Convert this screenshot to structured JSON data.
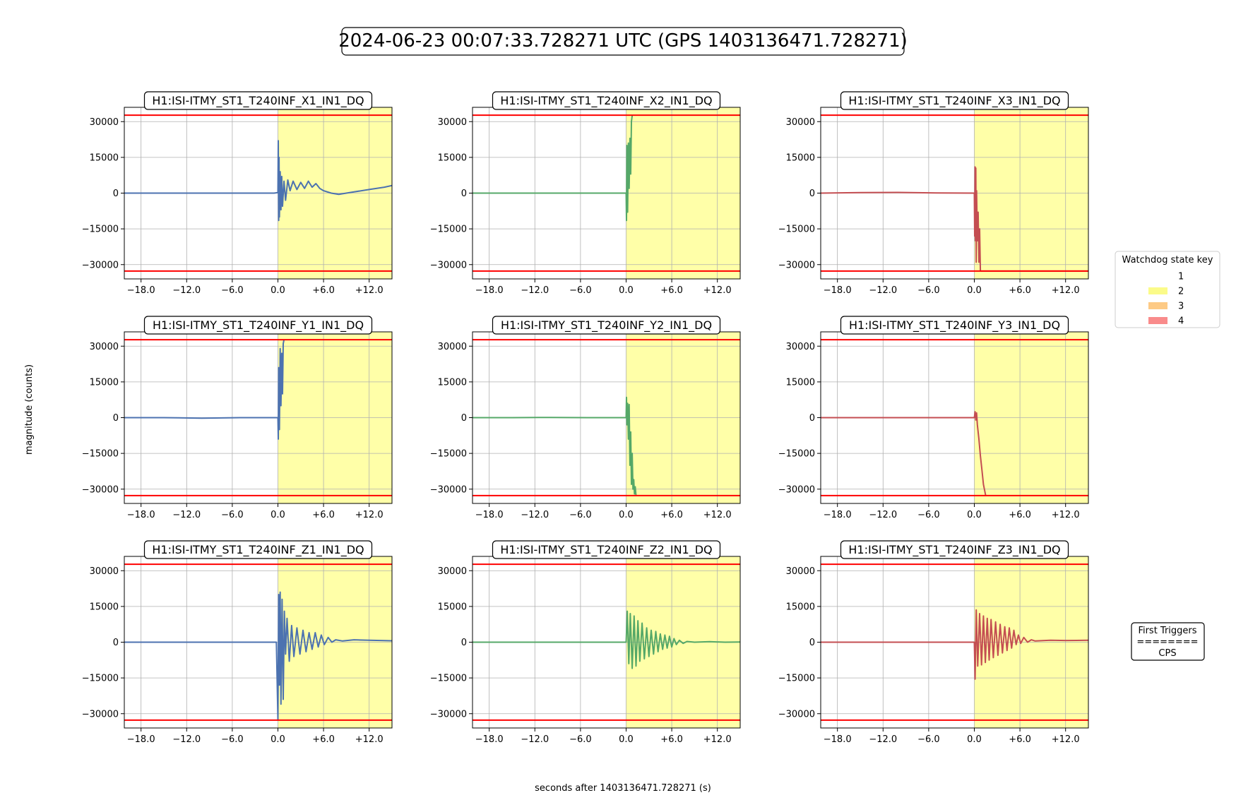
{
  "figure": {
    "title": "2024-06-23 00:07:33.728271 UTC (GPS 1403136471.728271)",
    "xlabel": "seconds after 1403136471.728271 (s)",
    "ylabel": "magnitude (counts)"
  },
  "legend": {
    "title": "Watchdog state key",
    "items": [
      {
        "label": "1",
        "color": "#ffffff"
      },
      {
        "label": "2",
        "color": "#fbfb89"
      },
      {
        "label": "3",
        "color": "#fdca85"
      },
      {
        "label": "4",
        "color": "#f98b8b"
      }
    ]
  },
  "first_triggers": {
    "title": "First Triggers",
    "rule": "========",
    "value": "CPS"
  },
  "colors": {
    "blue": "#4c72b0",
    "green": "#55a868",
    "red": "#c44e52",
    "threshold": "#ff0000",
    "state2_shade": "#ffffa8",
    "grid": "#b0b0b0"
  },
  "chart_data": [
    {
      "type": "line",
      "title": "H1:ISI-ITMY_ST1_T240INF_X1_IN1_DQ",
      "color": "blue",
      "xlim": [
        -20.2,
        15
      ],
      "ylim": [
        -36000,
        36000
      ],
      "xticks": [
        -18,
        -12,
        -6,
        0,
        6,
        12
      ],
      "xtick_labels": [
        "−18.0",
        "−12.0",
        "−6.0",
        "0.0",
        "+6.0",
        "+12.0"
      ],
      "yticks": [
        30000,
        15000,
        0,
        -15000,
        -30000
      ],
      "ytick_labels": [
        "30000",
        "15000",
        "0",
        "−15000",
        "−30000"
      ],
      "thresholds": [
        32700,
        -32700
      ],
      "shade": {
        "from": 0,
        "to": 15,
        "state": 2
      },
      "x": [
        -20.2,
        -15,
        -10,
        -5,
        -0.5,
        0,
        0.05,
        0.1,
        0.15,
        0.2,
        0.3,
        0.4,
        0.5,
        0.6,
        0.8,
        1.0,
        1.3,
        1.6,
        2.0,
        2.5,
        3.0,
        3.5,
        4.0,
        4.5,
        5.0,
        5.5,
        6.0,
        7.0,
        8.0,
        9.0,
        10.0,
        11.0,
        12.0,
        13.0,
        14.0,
        15.0
      ],
      "y": [
        0,
        0,
        0,
        0,
        0,
        200,
        22000,
        -11500,
        15000,
        -10000,
        9000,
        -7000,
        7000,
        -5500,
        5000,
        -3000,
        5500,
        1000,
        5000,
        1500,
        4500,
        2000,
        5000,
        2500,
        4000,
        2000,
        1000,
        0,
        -500,
        0,
        500,
        1000,
        1500,
        2000,
        2500,
        3200
      ]
    },
    {
      "type": "line",
      "title": "H1:ISI-ITMY_ST1_T240INF_X2_IN1_DQ",
      "color": "green",
      "xlim": [
        -20.2,
        15
      ],
      "ylim": [
        -36000,
        36000
      ],
      "xticks": [
        -18,
        -12,
        -6,
        0,
        6,
        12
      ],
      "xtick_labels": [
        "−18.0",
        "−12.0",
        "−6.0",
        "0.0",
        "+6.0",
        "+12.0"
      ],
      "yticks": [
        30000,
        15000,
        0,
        -15000,
        -30000
      ],
      "ytick_labels": [
        "30000",
        "15000",
        "0",
        "−15000",
        "−30000"
      ],
      "thresholds": [
        32700,
        -32700
      ],
      "shade": {
        "from": 0,
        "to": 15,
        "state": 2
      },
      "x": [
        -20.2,
        -15,
        -10,
        -5,
        0,
        0.05,
        0.1,
        0.2,
        0.3,
        0.4,
        0.5,
        0.6,
        0.7,
        0.8
      ],
      "y": [
        0,
        0,
        0,
        0,
        0,
        -11500,
        20000,
        -8000,
        21000,
        2000,
        23000,
        8000,
        30000,
        32500
      ]
    },
    {
      "type": "line",
      "title": "H1:ISI-ITMY_ST1_T240INF_X3_IN1_DQ",
      "color": "red",
      "xlim": [
        -20.2,
        15
      ],
      "ylim": [
        -36000,
        36000
      ],
      "xticks": [
        -18,
        -12,
        -6,
        0,
        6,
        12
      ],
      "xtick_labels": [
        "−18.0",
        "−12.0",
        "−6.0",
        "0.0",
        "+6.0",
        "+12.0"
      ],
      "yticks": [
        30000,
        15000,
        0,
        -15000,
        -30000
      ],
      "ytick_labels": [
        "30000",
        "15000",
        "0",
        "−15000",
        "−30000"
      ],
      "thresholds": [
        32700,
        -32700
      ],
      "shade": {
        "from": 0,
        "to": 15,
        "state": 2
      },
      "x": [
        -20.2,
        -15,
        -10,
        -5,
        0,
        0.05,
        0.1,
        0.15,
        0.2,
        0.25,
        0.3,
        0.4,
        0.5,
        0.6,
        0.7,
        0.8,
        1.0,
        1.5,
        15
      ],
      "y": [
        0,
        200,
        300,
        100,
        0,
        -18000,
        11000,
        -20000,
        10500,
        -29000,
        1000,
        -20000,
        -8000,
        -29000,
        -15000,
        -32700,
        -32700,
        -32700,
        -32700
      ]
    },
    {
      "type": "line",
      "title": "H1:ISI-ITMY_ST1_T240INF_Y1_IN1_DQ",
      "color": "blue",
      "xlim": [
        -20.2,
        15
      ],
      "ylim": [
        -36000,
        36000
      ],
      "xticks": [
        -18,
        -12,
        -6,
        0,
        6,
        12
      ],
      "xtick_labels": [
        "−18.0",
        "−12.0",
        "−6.0",
        "0.0",
        "+6.0",
        "+12.0"
      ],
      "yticks": [
        30000,
        15000,
        0,
        -15000,
        -30000
      ],
      "ytick_labels": [
        "30000",
        "15000",
        "0",
        "−15000",
        "−30000"
      ],
      "thresholds": [
        32700,
        -32700
      ],
      "shade": {
        "from": 0,
        "to": 15,
        "state": 2
      },
      "x": [
        -20.2,
        -15,
        -10,
        -5,
        0,
        0.05,
        0.1,
        0.2,
        0.3,
        0.4,
        0.5,
        0.6,
        0.7,
        0.8
      ],
      "y": [
        0,
        0,
        -200,
        0,
        0,
        -9000,
        21000,
        -5000,
        29000,
        5000,
        27000,
        10000,
        31000,
        32700
      ]
    },
    {
      "type": "line",
      "title": "H1:ISI-ITMY_ST1_T240INF_Y2_IN1_DQ",
      "color": "green",
      "xlim": [
        -20.2,
        15
      ],
      "ylim": [
        -36000,
        36000
      ],
      "xticks": [
        -18,
        -12,
        -6,
        0,
        6,
        12
      ],
      "xtick_labels": [
        "−18.0",
        "−12.0",
        "−6.0",
        "0.0",
        "+6.0",
        "+12.0"
      ],
      "yticks": [
        30000,
        15000,
        0,
        -15000,
        -30000
      ],
      "ytick_labels": [
        "30000",
        "15000",
        "0",
        "−15000",
        "−30000"
      ],
      "thresholds": [
        32700,
        -32700
      ],
      "shade": {
        "from": 0,
        "to": 15,
        "state": 2
      },
      "x": [
        -20.2,
        -15,
        -10,
        -5,
        0,
        0.05,
        0.1,
        0.2,
        0.3,
        0.4,
        0.5,
        0.6,
        0.7,
        0.8,
        0.9,
        1.0,
        1.1,
        1.2,
        1.3
      ],
      "y": [
        0,
        0,
        100,
        0,
        0,
        8500,
        -3000,
        6000,
        -9000,
        5500,
        -20000,
        -6000,
        -28000,
        -15000,
        -30000,
        -26000,
        -32000,
        -29000,
        -32700
      ]
    },
    {
      "type": "line",
      "title": "H1:ISI-ITMY_ST1_T240INF_Y3_IN1_DQ",
      "color": "red",
      "xlim": [
        -20.2,
        15
      ],
      "ylim": [
        -36000,
        36000
      ],
      "xticks": [
        -18,
        -12,
        -6,
        0,
        6,
        12
      ],
      "xtick_labels": [
        "−18.0",
        "−12.0",
        "−6.0",
        "0.0",
        "+6.0",
        "+12.0"
      ],
      "yticks": [
        30000,
        15000,
        0,
        -15000,
        -30000
      ],
      "ytick_labels": [
        "30000",
        "15000",
        "0",
        "−15000",
        "−30000"
      ],
      "thresholds": [
        32700,
        -32700
      ],
      "shade": {
        "from": 0,
        "to": 15,
        "state": 2
      },
      "x": [
        -20.2,
        -15,
        -10,
        -5,
        0,
        0.1,
        0.2,
        0.3,
        0.4,
        0.6,
        0.8,
        1.0,
        1.2,
        1.5
      ],
      "y": [
        0,
        0,
        0,
        0,
        0,
        2500,
        -1000,
        2000,
        -3000,
        -9000,
        -16000,
        -22000,
        -28000,
        -32700
      ]
    },
    {
      "type": "line",
      "title": "H1:ISI-ITMY_ST1_T240INF_Z1_IN1_DQ",
      "color": "blue",
      "xlim": [
        -20.2,
        15
      ],
      "ylim": [
        -36000,
        36000
      ],
      "xticks": [
        -18,
        -12,
        -6,
        0,
        6,
        12
      ],
      "xtick_labels": [
        "−18.0",
        "−12.0",
        "−6.0",
        "0.0",
        "+6.0",
        "+12.0"
      ],
      "yticks": [
        30000,
        15000,
        0,
        -15000,
        -30000
      ],
      "ytick_labels": [
        "30000",
        "15000",
        "0",
        "−15000",
        "−30000"
      ],
      "thresholds": [
        32700,
        -32700
      ],
      "shade": {
        "from": 0,
        "to": 15,
        "state": 2
      },
      "x": [
        -20.2,
        -15,
        -10,
        -5,
        -0.2,
        0,
        0.1,
        0.2,
        0.3,
        0.4,
        0.55,
        0.7,
        0.85,
        1.0,
        1.2,
        1.5,
        1.8,
        2.1,
        2.5,
        2.9,
        3.3,
        3.7,
        4.1,
        4.5,
        4.9,
        5.3,
        5.7,
        6.1,
        6.6,
        7.1,
        7.6,
        8.5,
        10,
        12,
        15
      ],
      "y": [
        0,
        0,
        0,
        0,
        0,
        -32700,
        20000,
        -18000,
        21000,
        -26000,
        18000,
        -24000,
        13000,
        -5000,
        10000,
        -8000,
        7000,
        -6000,
        6000,
        -5000,
        5000,
        -4000,
        4000,
        -3000,
        4000,
        -2000,
        3000,
        -1000,
        2000,
        0,
        1000,
        500,
        1000,
        800,
        600
      ]
    },
    {
      "type": "line",
      "title": "H1:ISI-ITMY_ST1_T240INF_Z2_IN1_DQ",
      "color": "green",
      "xlim": [
        -20.2,
        15
      ],
      "ylim": [
        -36000,
        36000
      ],
      "xticks": [
        -18,
        -12,
        -6,
        0,
        6,
        12
      ],
      "xtick_labels": [
        "−18.0",
        "−12.0",
        "−6.0",
        "0.0",
        "+6.0",
        "+12.0"
      ],
      "yticks": [
        30000,
        15000,
        0,
        -15000,
        -30000
      ],
      "ytick_labels": [
        "30000",
        "15000",
        "0",
        "−15000",
        "−30000"
      ],
      "thresholds": [
        32700,
        -32700
      ],
      "shade": {
        "from": 0,
        "to": 15,
        "state": 2
      },
      "x": [
        -20.2,
        -15,
        -10,
        -5,
        0,
        0.15,
        0.35,
        0.55,
        0.8,
        1.05,
        1.3,
        1.55,
        1.8,
        2.1,
        2.4,
        2.7,
        3.0,
        3.3,
        3.6,
        3.9,
        4.2,
        4.5,
        4.8,
        5.1,
        5.4,
        5.7,
        6.0,
        6.3,
        6.6,
        7.0,
        7.5,
        8.0,
        9,
        11,
        13,
        15
      ],
      "y": [
        0,
        0,
        0,
        0,
        0,
        13000,
        -9000,
        12000,
        -11000,
        11000,
        -10000,
        9000,
        -8000,
        8000,
        -7000,
        6000,
        -6000,
        5000,
        -5000,
        4500,
        -4000,
        3500,
        -3000,
        3000,
        -2500,
        2500,
        -2000,
        1500,
        -1000,
        800,
        -500,
        300,
        0,
        200,
        0,
        100
      ]
    },
    {
      "type": "line",
      "title": "H1:ISI-ITMY_ST1_T240INF_Z3_IN1_DQ",
      "color": "red",
      "xlim": [
        -20.2,
        15
      ],
      "ylim": [
        -36000,
        36000
      ],
      "xticks": [
        -18,
        -12,
        -6,
        0,
        6,
        12
      ],
      "xtick_labels": [
        "−18.0",
        "−12.0",
        "−6.0",
        "0.0",
        "+6.0",
        "+12.0"
      ],
      "yticks": [
        30000,
        15000,
        0,
        -15000,
        -30000
      ],
      "ytick_labels": [
        "30000",
        "15000",
        "0",
        "−15000",
        "−30000"
      ],
      "thresholds": [
        32700,
        -32700
      ],
      "shade": {
        "from": 0,
        "to": 15,
        "state": 2
      },
      "x": [
        -20.2,
        -15,
        -10,
        -5,
        0,
        0.1,
        0.25,
        0.45,
        0.7,
        0.95,
        1.2,
        1.45,
        1.7,
        1.95,
        2.2,
        2.5,
        2.8,
        3.1,
        3.4,
        3.7,
        4.0,
        4.3,
        4.6,
        4.9,
        5.2,
        5.5,
        5.8,
        6.1,
        6.5,
        7.0,
        7.5,
        8.0,
        10,
        12,
        15
      ],
      "y": [
        0,
        0,
        0,
        0,
        0,
        -15500,
        13500,
        -10000,
        12000,
        -9500,
        11000,
        -8500,
        10000,
        -7500,
        9500,
        -6500,
        8500,
        -5500,
        7500,
        -4500,
        6500,
        -3500,
        6000,
        -2500,
        5000,
        -1000,
        3000,
        -500,
        2000,
        0,
        1000,
        500,
        800,
        700,
        800
      ]
    }
  ]
}
